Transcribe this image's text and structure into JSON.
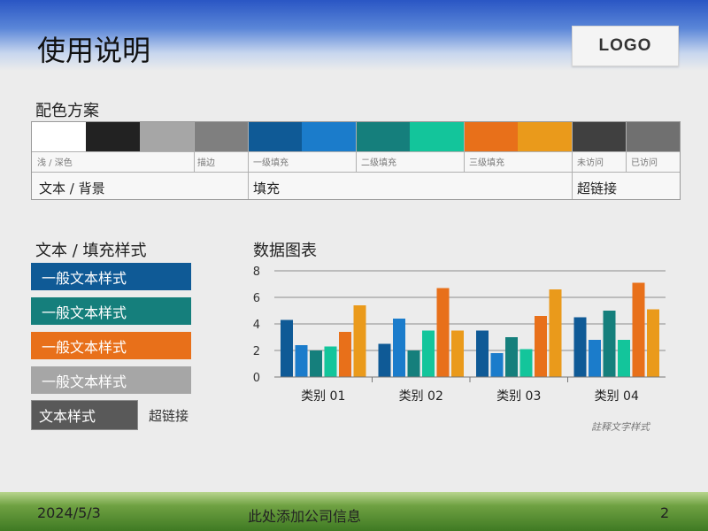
{
  "title": "使用说明",
  "logo": "LOGO",
  "palette": {
    "title": "配色方案",
    "swatches": [
      "#ffffff",
      "#222222",
      "#a6a6a6",
      "#7f7f7f",
      "#0f5a96",
      "#1b7ccb",
      "#157f7c",
      "#13c59b",
      "#e8701a",
      "#ea9a1b",
      "#404040",
      "#707070"
    ],
    "sublabels": [
      "浅 / 深色",
      "描边",
      "一级填充",
      "二级填充",
      "三级填充",
      "未访问",
      "已访问"
    ],
    "groups": [
      "文本 / 背景",
      "填充",
      "超链接"
    ]
  },
  "text_styles": {
    "title": "文本 / 填充样式",
    "boxes": [
      {
        "label": "一般文本样式",
        "bg": "#0f5a96",
        "fg": "#ffffff"
      },
      {
        "label": "一般文本样式",
        "bg": "#157f7c",
        "fg": "#ffffff"
      },
      {
        "label": "一般文本样式",
        "bg": "#e8701a",
        "fg": "#ffffff"
      },
      {
        "label": "一般文本样式",
        "bg": "#a6a6a6",
        "fg": "#ffffff"
      }
    ],
    "text_style": "文本样式",
    "hyperlink": "超链接"
  },
  "chart_title": "数据图表",
  "chart_note": "註释文字样式",
  "chart_data": {
    "type": "bar",
    "categories": [
      "类别 01",
      "类别 02",
      "类别 03",
      "类别 04"
    ],
    "series": [
      {
        "color": "#0f5a96",
        "values": [
          4.3,
          2.5,
          3.5,
          4.5
        ]
      },
      {
        "color": "#1b7ccb",
        "values": [
          2.4,
          4.4,
          1.8,
          2.8
        ]
      },
      {
        "color": "#157f7c",
        "values": [
          2.0,
          2.0,
          3.0,
          5.0
        ]
      },
      {
        "color": "#13c59b",
        "values": [
          2.3,
          3.5,
          2.1,
          2.8
        ]
      },
      {
        "color": "#e8701a",
        "values": [
          3.4,
          6.7,
          4.6,
          7.1
        ]
      },
      {
        "color": "#ea9a1b",
        "values": [
          5.4,
          3.5,
          6.6,
          5.1
        ]
      }
    ],
    "yticks": [
      0,
      2,
      4,
      6,
      8
    ],
    "ylim": [
      0,
      8
    ],
    "grid": true
  },
  "footer": {
    "date": "2024/5/3",
    "company": "此处添加公司信息",
    "page": "2"
  }
}
